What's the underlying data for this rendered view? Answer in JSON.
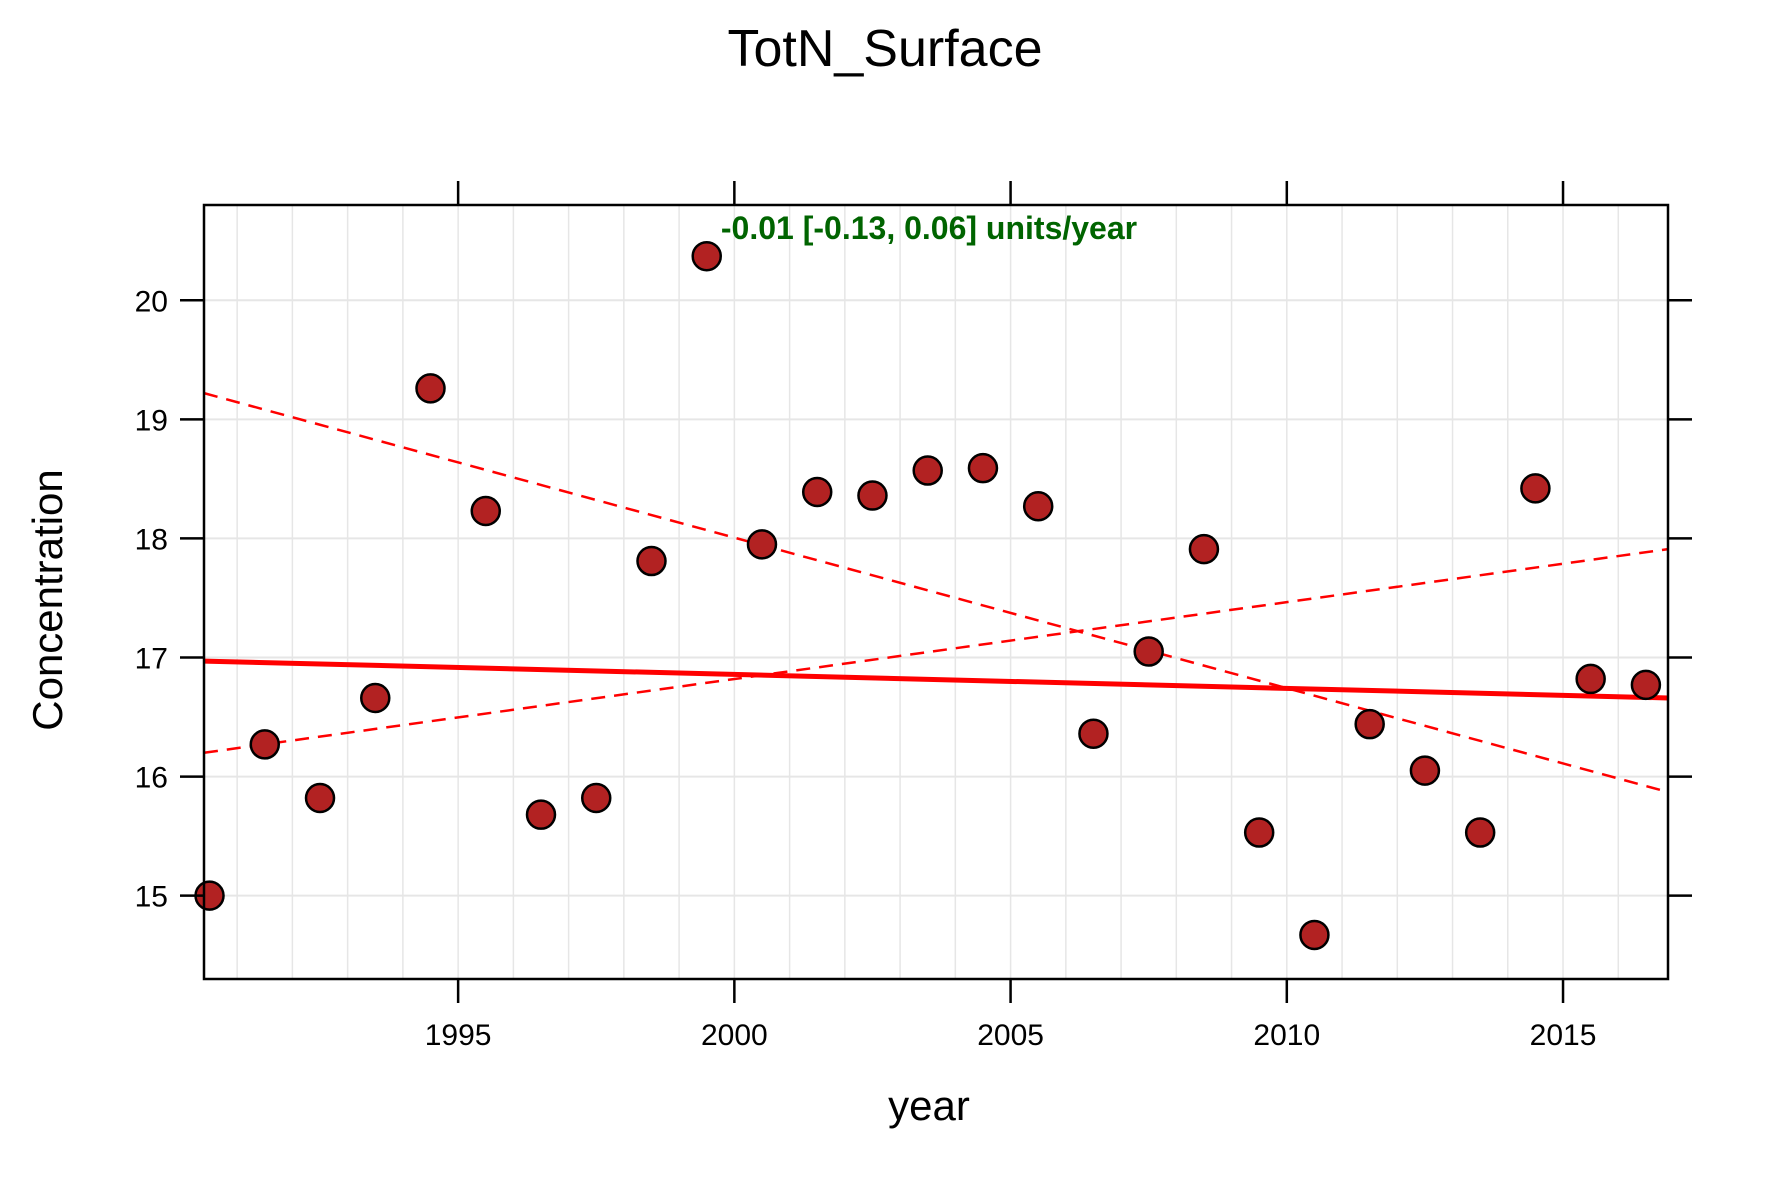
{
  "chart_data": {
    "type": "scatter",
    "title": "TotN_Surface",
    "xlabel": "year",
    "ylabel": "Concentration",
    "xlim": [
      1990.4,
      2016.9
    ],
    "ylim": [
      14.3,
      20.8
    ],
    "x_ticks": [
      1995,
      2000,
      2005,
      2010,
      2015
    ],
    "x_tick_labels": [
      "1995",
      "2000",
      "2005",
      "2010",
      "2015"
    ],
    "y_ticks": [
      15,
      16,
      17,
      18,
      19,
      20
    ],
    "y_tick_labels": [
      "15",
      "16",
      "17",
      "18",
      "19",
      "20"
    ],
    "x_minor_grid": [
      1991,
      1992,
      1993,
      1994,
      1995,
      1996,
      1997,
      1998,
      1999,
      2000,
      2001,
      2002,
      2003,
      2004,
      2005,
      2006,
      2007,
      2008,
      2009,
      2010,
      2011,
      2012,
      2013,
      2014,
      2015,
      2016
    ],
    "grid": true,
    "annotation": {
      "text": "-0.01 [-0.13, 0.06] units/year",
      "color": "#006400"
    },
    "points": {
      "x": [
        1990.5,
        1991.5,
        1992.5,
        1993.5,
        1994.5,
        1995.5,
        1996.5,
        1997.5,
        1998.5,
        1999.5,
        2000.5,
        2001.5,
        2002.5,
        2003.5,
        2004.5,
        2005.5,
        2006.5,
        2007.5,
        2008.5,
        2009.5,
        2010.5,
        2011.5,
        2012.5,
        2013.5,
        2014.5,
        2015.5,
        2016.5
      ],
      "y": [
        15.0,
        16.27,
        15.82,
        16.66,
        19.26,
        18.23,
        15.68,
        15.82,
        17.81,
        20.37,
        17.95,
        18.39,
        18.36,
        18.57,
        18.59,
        18.27,
        16.36,
        17.05,
        17.91,
        15.53,
        14.67,
        16.44,
        16.05,
        15.53,
        18.42,
        16.82,
        16.77
      ],
      "fill": "#b22222",
      "stroke": "#000000"
    },
    "trend_line": {
      "x": [
        1990.4,
        2016.9
      ],
      "y": [
        16.97,
        16.66
      ],
      "color": "#ff0000",
      "style": "solid"
    },
    "confidence_lines": [
      {
        "x": [
          1990.4,
          2016.9
        ],
        "y": [
          19.22,
          15.87
        ],
        "color": "#ff0000",
        "style": "dashed"
      },
      {
        "x": [
          1990.4,
          2016.9
        ],
        "y": [
          16.2,
          17.91
        ],
        "color": "#ff0000",
        "style": "dashed"
      }
    ],
    "colors": {
      "grid": "#e6e6e6",
      "axis": "#000000"
    }
  }
}
